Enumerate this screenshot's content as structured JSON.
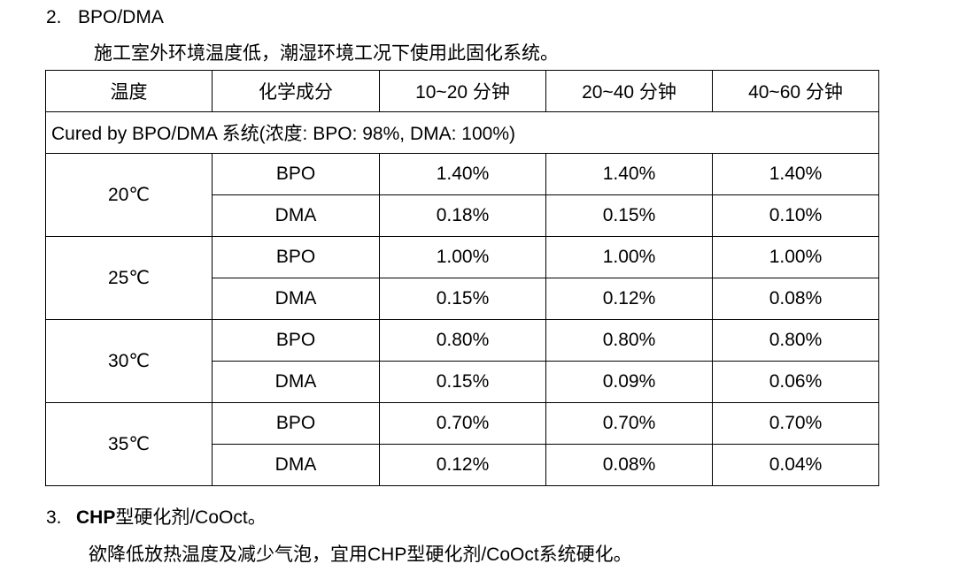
{
  "section2": {
    "number": "2.",
    "title": "BPO/DMA",
    "description": "施工室外环境温度低，潮湿环境工况下使用此固化系统。"
  },
  "table": {
    "headers": [
      "温度",
      "化学成分",
      "10~20 分钟",
      "20~40  分钟",
      "40~60  分钟"
    ],
    "note": "Cured by BPO/DMA 系统(浓度: BPO: 98%, DMA: 100%)",
    "groups": [
      {
        "temperature": "20℃",
        "rows": [
          {
            "component": "BPO",
            "values": [
              "1.40%",
              "1.40%",
              "1.40%"
            ]
          },
          {
            "component": "DMA",
            "values": [
              "0.18%",
              "0.15%",
              "0.10%"
            ]
          }
        ]
      },
      {
        "temperature": "25℃",
        "rows": [
          {
            "component": "BPO",
            "values": [
              "1.00%",
              "1.00%",
              "1.00%"
            ]
          },
          {
            "component": "DMA",
            "values": [
              "0.15%",
              "0.12%",
              "0.08%"
            ]
          }
        ]
      },
      {
        "temperature": "30℃",
        "rows": [
          {
            "component": "BPO",
            "values": [
              "0.80%",
              "0.80%",
              "0.80%"
            ]
          },
          {
            "component": "DMA",
            "values": [
              "0.15%",
              "0.09%",
              "0.06%"
            ]
          }
        ]
      },
      {
        "temperature": "35℃",
        "rows": [
          {
            "component": "BPO",
            "values": [
              "0.70%",
              "0.70%",
              "0.70%"
            ]
          },
          {
            "component": "DMA",
            "values": [
              "0.12%",
              "0.08%",
              "0.04%"
            ]
          }
        ]
      }
    ]
  },
  "section3": {
    "number": "3.",
    "title_bold": "CHP",
    "title_rest": "型硬化剂/CoOct。",
    "description": "欲降低放热温度及减少气泡，宜用CHP型硬化剂/CoOct系统硬化。"
  }
}
